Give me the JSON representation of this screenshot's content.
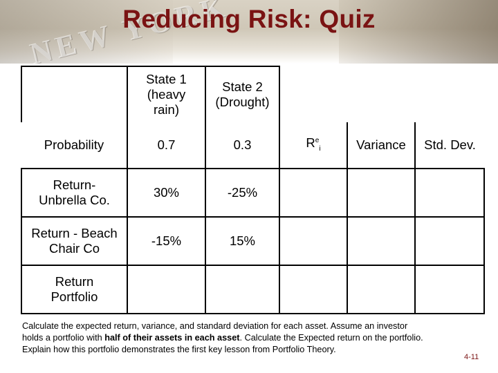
{
  "slide": {
    "title": "Reducing Risk: Quiz",
    "banner_watermark": "NEW YORK",
    "slide_number": "4-11"
  },
  "table": {
    "header": {
      "state1": "State 1 (heavy rain)",
      "state2": "State 2 (Drought)"
    },
    "probability_row": {
      "label": "Probability",
      "state1": "0.7",
      "state2": "0.3",
      "expected_return_base": "R",
      "expected_return_sup": "e",
      "expected_return_sub": "i",
      "variance": "Variance",
      "std_dev": "Std. Dev."
    },
    "umbrella_row": {
      "label": "Return-Unbrella Co.",
      "state1": "30%",
      "state2": "-25%"
    },
    "beach_row": {
      "label": "Return - Beach Chair Co",
      "state1": "-15%",
      "state2": "15%"
    },
    "portfolio_row": {
      "label": "Return Portfolio"
    }
  },
  "instructions": {
    "part1": "Calculate the expected return, variance, and standard deviation for each asset. Assume an investor holds a portfolio with ",
    "bold": "half of their assets in each asset",
    "part2": ". Calculate the Expected return on the portfolio. Explain how this portfolio demonstrates the first key lesson from Portfolio Theory."
  }
}
